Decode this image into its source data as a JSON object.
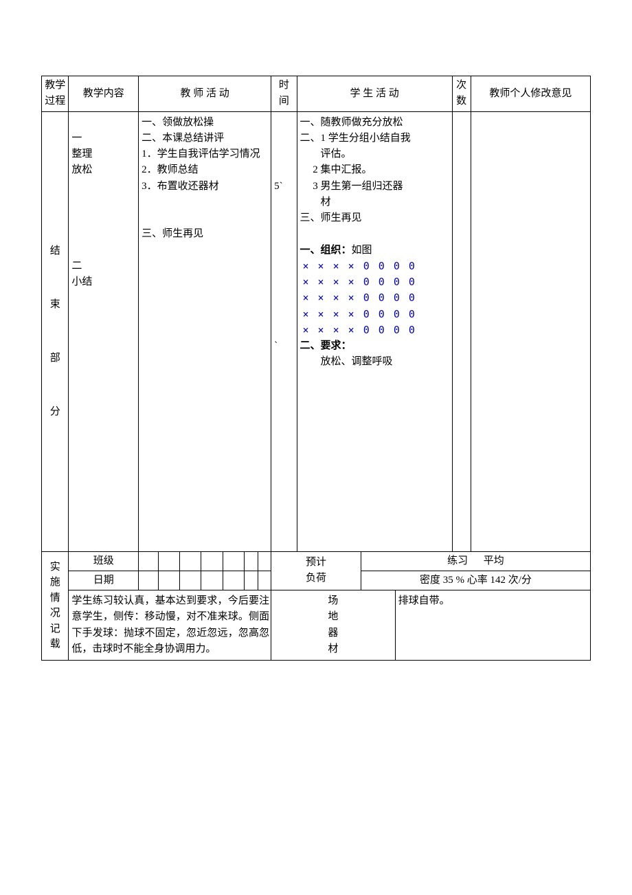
{
  "header": {
    "process": "教学过程",
    "content": "教学内容",
    "teacher_activity": "教  师  活  动",
    "time": "时间",
    "student_activity": "学  生  活  动",
    "count": "次数",
    "comment": "教师个人修改意见"
  },
  "process_label": "结\n\n束\n\n部\n\n分",
  "content_text": "\n一\n整理\n放松\n\n\n\n\n\n二\n小结",
  "teacher_text": "一、领做放松操\n二、本课总结讲评\n1．学生自我评估学习情况\n2．教师总结\n3．布置收还器材\n\n\n三、师生再见",
  "time_text": "\n\n\n\n5`\n\n\n\n\n\n\n\n\n\n`",
  "student_paragraphs": [
    "一、随教师做充分放松",
    "二、1 学生分组小结自我",
    "        评估。",
    "     2 集中汇报。",
    "     3 男生第一组归还器",
    "        材",
    "三、师生再见",
    "",
    "一、组织：如图"
  ],
  "formation_rows": [
    "× × × × 0 0 0 0",
    "× × × × 0 0 0 0",
    "× × × × 0 0 0 0",
    "× × × × 0 0 0 0",
    "× × × × 0 0 0 0"
  ],
  "student_tail": [
    "二、要求：",
    "        放松、调整呼吸"
  ],
  "impl": {
    "label": "实施情况记载",
    "class_label": "班级",
    "date_label": "日期",
    "notes": "学生练习较认真，基本达到要求，今后要注意学生，侧传：移动慢，对不准来球。侧面下手发球：抛球不固定，忽近忽远，忽高忽低，击球时不能全身协调用力。",
    "forecast_label": "预计",
    "load_label": "负荷",
    "practice_label": "练习",
    "avg_label": "平均",
    "density_text": "密度 35 %  心率 142  次/分",
    "venue_label": "场\n地\n器\n材",
    "venue_text": "排球自带。"
  },
  "colors": {
    "x_color": "#0000cc"
  }
}
